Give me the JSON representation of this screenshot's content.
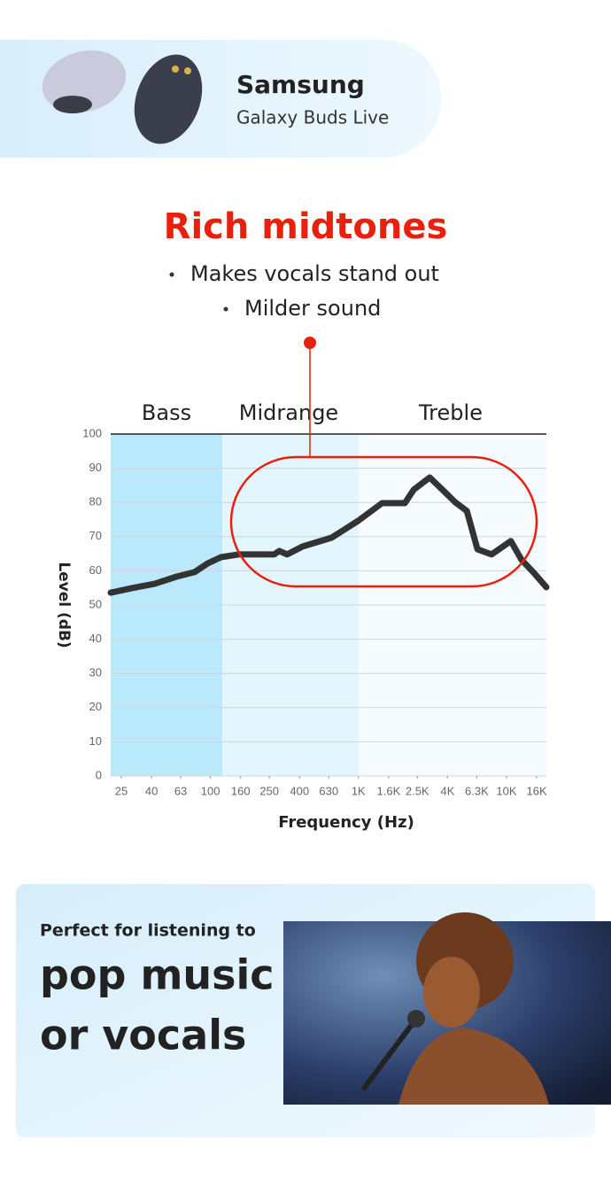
{
  "product": {
    "brand": "Samsung",
    "model": "Galaxy Buds Live"
  },
  "headline": "Rich midtones",
  "bullets": [
    "Makes vocals stand out",
    "Milder sound"
  ],
  "chart_data": {
    "type": "line",
    "bands": [
      "Bass",
      "Midrange",
      "Treble"
    ],
    "x_label": "Frequency (Hz)",
    "y_label": "Level (dB)",
    "x": [
      21.2,
      30,
      42,
      59,
      78,
      96,
      118,
      155,
      270,
      292,
      330,
      419,
      659,
      995,
      1443,
      2060,
      2360,
      3030,
      3930,
      4520,
      5400,
      6370,
      7940,
      10700,
      12650,
      15550,
      18600
    ],
    "values": [
      53.6,
      55,
      56.2,
      58.3,
      59.6,
      62.2,
      64,
      64.8,
      64.8,
      65.8,
      64.8,
      67.1,
      69.7,
      74.6,
      79.8,
      79.8,
      83.7,
      87.3,
      82.6,
      80,
      77.5,
      66.3,
      64.8,
      68.7,
      63.2,
      59.1,
      55.2
    ],
    "color": "#333333",
    "log_x": true,
    "grid": true,
    "xlim": [
      21.2,
      18600
    ],
    "ylim": [
      0,
      100
    ],
    "xticks": [
      25,
      40,
      63,
      100,
      160,
      250,
      400,
      630,
      {
        "value": 1000,
        "label": "1K"
      },
      {
        "value": 1600,
        "label": "1.6K"
      },
      {
        "value": 2500,
        "label": "2.5K"
      },
      {
        "value": 4000,
        "label": "4K"
      },
      {
        "value": 6300,
        "label": "6.3K"
      },
      {
        "value": 10000,
        "label": "10K"
      },
      {
        "value": 16000,
        "label": "16K"
      }
    ],
    "yticks": [
      0,
      10,
      20,
      30,
      40,
      50,
      60,
      70,
      80,
      90,
      100
    ]
  },
  "footer": {
    "lead": "Perfect for listening to",
    "lines": [
      "pop music",
      "or vocals"
    ]
  }
}
